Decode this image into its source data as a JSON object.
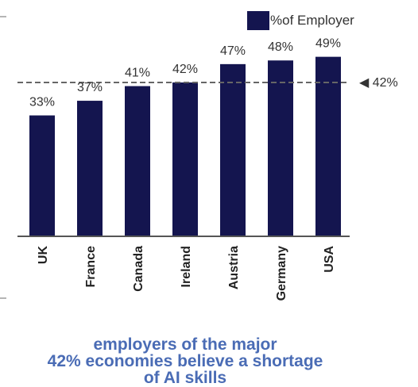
{
  "legend": {
    "label": "%of Employer"
  },
  "chart_data": {
    "type": "bar",
    "categories": [
      "UK",
      "France",
      "Canada",
      "Ireland",
      "Austria",
      "Germany",
      "USA"
    ],
    "series": [
      {
        "name": "%of Employer",
        "values": [
          33,
          37,
          41,
          42,
          47,
          48,
          49
        ]
      }
    ],
    "data_labels": [
      "33%",
      "37%",
      "41%",
      "42%",
      "47%",
      "48%",
      "49%"
    ],
    "reference_line": {
      "value": 42,
      "label": "◀ 42%"
    },
    "ylim": [
      0,
      50
    ],
    "grid": false
  },
  "caption": {
    "line1": "employers of the major",
    "line2": "42% economies believe a shortage",
    "line3": "of AI skills"
  },
  "colors": {
    "bar": "#14154f",
    "baseline": "#555555",
    "reference_line": "#666666",
    "caption": "#4a6cb5",
    "text": "#333333"
  }
}
